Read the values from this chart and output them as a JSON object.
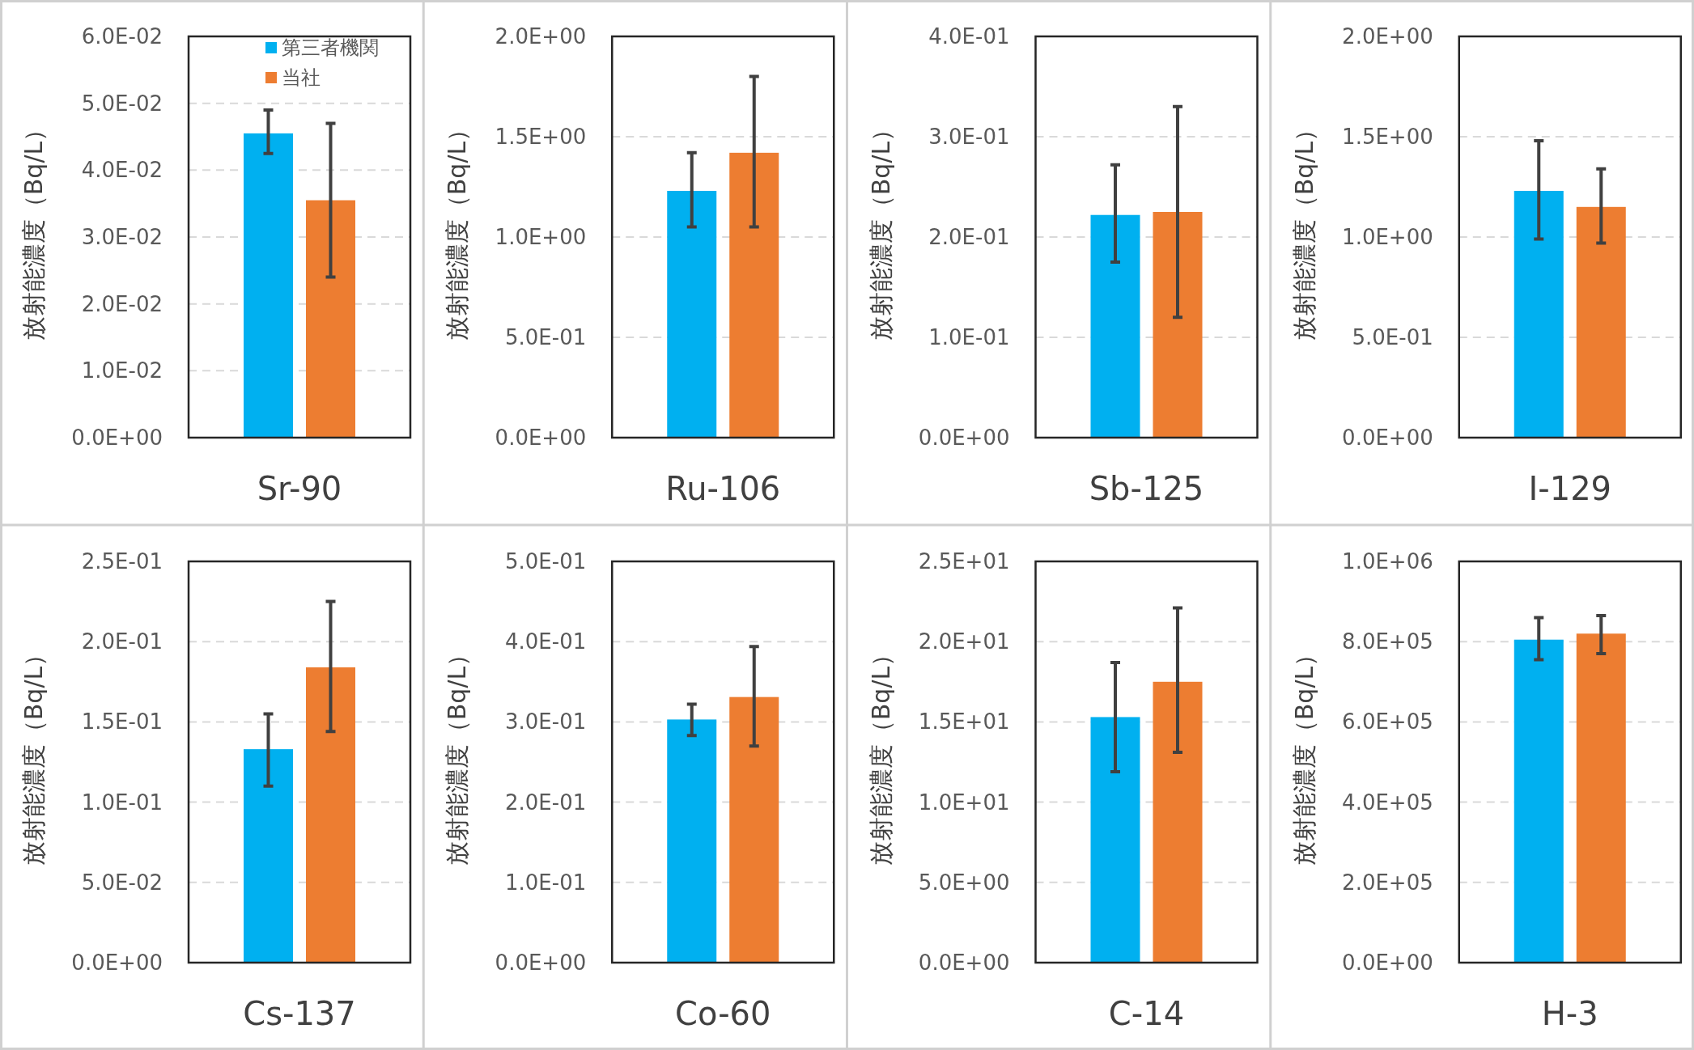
{
  "chart_data": [
    {
      "type": "bar",
      "categories": [
        "Sr-90"
      ],
      "ylabel": "放射能濃度（Bq/L）",
      "legend": "top right",
      "grid": "y",
      "ylim": [
        0,
        0.06
      ],
      "yticks": [
        {
          "value": 0,
          "label": "0.0E+00"
        },
        {
          "value": 0.01,
          "label": "1.0E-02"
        },
        {
          "value": 0.02,
          "label": "2.0E-02"
        },
        {
          "value": 0.03,
          "label": "3.0E-02"
        },
        {
          "value": 0.04,
          "label": "4.0E-02"
        },
        {
          "value": 0.05,
          "label": "5.0E-02"
        },
        {
          "value": 0.06,
          "label": "6.0E-02"
        }
      ],
      "series": [
        {
          "name": "第三者機関",
          "color": "#00b0f0",
          "values": [
            0.0455
          ],
          "errors": [
            [
              0.0425,
              0.049
            ]
          ]
        },
        {
          "name": "当社",
          "color": "#ed7d31",
          "values": [
            0.0355
          ],
          "errors": [
            [
              0.024,
              0.047
            ]
          ]
        }
      ]
    },
    {
      "type": "bar",
      "categories": [
        "Ru-106"
      ],
      "ylabel": "放射能濃度（Bq/L）",
      "grid": "y",
      "ylim": [
        0,
        2.0
      ],
      "yticks": [
        {
          "value": 0,
          "label": "0.0E+00"
        },
        {
          "value": 0.5,
          "label": "5.0E-01"
        },
        {
          "value": 1.0,
          "label": "1.0E+00"
        },
        {
          "value": 1.5,
          "label": "1.5E+00"
        },
        {
          "value": 2.0,
          "label": "2.0E+00"
        }
      ],
      "series": [
        {
          "color": "#00b0f0",
          "values": [
            1.23
          ],
          "errors": [
            [
              1.05,
              1.42
            ]
          ]
        },
        {
          "color": "#ed7d31",
          "values": [
            1.42
          ],
          "errors": [
            [
              1.05,
              1.8
            ]
          ]
        }
      ]
    },
    {
      "type": "bar",
      "categories": [
        "Sb-125"
      ],
      "ylabel": "放射能濃度（Bq/L）",
      "grid": "y",
      "ylim": [
        0,
        0.4
      ],
      "yticks": [
        {
          "value": 0,
          "label": "0.0E+00"
        },
        {
          "value": 0.1,
          "label": "1.0E-01"
        },
        {
          "value": 0.2,
          "label": "2.0E-01"
        },
        {
          "value": 0.3,
          "label": "3.0E-01"
        },
        {
          "value": 0.4,
          "label": "4.0E-01"
        }
      ],
      "series": [
        {
          "color": "#00b0f0",
          "values": [
            0.222
          ],
          "errors": [
            [
              0.175,
              0.272
            ]
          ]
        },
        {
          "color": "#ed7d31",
          "values": [
            0.225
          ],
          "errors": [
            [
              0.12,
              0.33
            ]
          ]
        }
      ]
    },
    {
      "type": "bar",
      "categories": [
        "I-129"
      ],
      "ylabel": "放射能濃度（Bq/L）",
      "grid": "y",
      "ylim": [
        0,
        2.0
      ],
      "yticks": [
        {
          "value": 0,
          "label": "0.0E+00"
        },
        {
          "value": 0.5,
          "label": "5.0E-01"
        },
        {
          "value": 1.0,
          "label": "1.0E+00"
        },
        {
          "value": 1.5,
          "label": "1.5E+00"
        },
        {
          "value": 2.0,
          "label": "2.0E+00"
        }
      ],
      "series": [
        {
          "color": "#00b0f0",
          "values": [
            1.23
          ],
          "errors": [
            [
              0.99,
              1.48
            ]
          ]
        },
        {
          "color": "#ed7d31",
          "values": [
            1.15
          ],
          "errors": [
            [
              0.97,
              1.34
            ]
          ]
        }
      ]
    },
    {
      "type": "bar",
      "categories": [
        "Cs-137"
      ],
      "ylabel": "放射能濃度（Bq/L）",
      "grid": "y",
      "ylim": [
        0,
        0.25
      ],
      "yticks": [
        {
          "value": 0,
          "label": "0.0E+00"
        },
        {
          "value": 0.05,
          "label": "5.0E-02"
        },
        {
          "value": 0.1,
          "label": "1.0E-01"
        },
        {
          "value": 0.15,
          "label": "1.5E-01"
        },
        {
          "value": 0.2,
          "label": "2.0E-01"
        },
        {
          "value": 0.25,
          "label": "2.5E-01"
        }
      ],
      "series": [
        {
          "color": "#00b0f0",
          "values": [
            0.133
          ],
          "errors": [
            [
              0.11,
              0.155
            ]
          ]
        },
        {
          "color": "#ed7d31",
          "values": [
            0.184
          ],
          "errors": [
            [
              0.144,
              0.225
            ]
          ]
        }
      ]
    },
    {
      "type": "bar",
      "categories": [
        "Co-60"
      ],
      "ylabel": "放射能濃度（Bq/L）",
      "grid": "y",
      "ylim": [
        0,
        0.5
      ],
      "yticks": [
        {
          "value": 0,
          "label": "0.0E+00"
        },
        {
          "value": 0.1,
          "label": "1.0E-01"
        },
        {
          "value": 0.2,
          "label": "2.0E-01"
        },
        {
          "value": 0.3,
          "label": "3.0E-01"
        },
        {
          "value": 0.4,
          "label": "4.0E-01"
        },
        {
          "value": 0.5,
          "label": "5.0E-01"
        }
      ],
      "series": [
        {
          "color": "#00b0f0",
          "values": [
            0.303
          ],
          "errors": [
            [
              0.283,
              0.322
            ]
          ]
        },
        {
          "color": "#ed7d31",
          "values": [
            0.331
          ],
          "errors": [
            [
              0.27,
              0.394
            ]
          ]
        }
      ]
    },
    {
      "type": "bar",
      "categories": [
        "C-14"
      ],
      "ylabel": "放射能濃度（Bq/L）",
      "grid": "y",
      "ylim": [
        0,
        25
      ],
      "yticks": [
        {
          "value": 0,
          "label": "0.0E+00"
        },
        {
          "value": 5,
          "label": "5.0E+00"
        },
        {
          "value": 10,
          "label": "1.0E+01"
        },
        {
          "value": 15,
          "label": "1.5E+01"
        },
        {
          "value": 20,
          "label": "2.0E+01"
        },
        {
          "value": 25,
          "label": "2.5E+01"
        }
      ],
      "series": [
        {
          "color": "#00b0f0",
          "values": [
            15.3
          ],
          "errors": [
            [
              11.9,
              18.7
            ]
          ]
        },
        {
          "color": "#ed7d31",
          "values": [
            17.5
          ],
          "errors": [
            [
              13.1,
              22.1
            ]
          ]
        }
      ]
    },
    {
      "type": "bar",
      "categories": [
        "H-3"
      ],
      "ylabel": "放射能濃度（Bq/L）",
      "grid": "y",
      "ylim": [
        0,
        1000000
      ],
      "yticks": [
        {
          "value": 0,
          "label": "0.0E+00"
        },
        {
          "value": 200000,
          "label": "2.0E+05"
        },
        {
          "value": 400000,
          "label": "4.0E+05"
        },
        {
          "value": 600000,
          "label": "6.0E+05"
        },
        {
          "value": 800000,
          "label": "8.0E+05"
        },
        {
          "value": 1000000,
          "label": "1.0E+06"
        }
      ],
      "series": [
        {
          "color": "#00b0f0",
          "values": [
            805000
          ],
          "errors": [
            [
              755000,
              860000
            ]
          ]
        },
        {
          "color": "#ed7d31",
          "values": [
            820000
          ],
          "errors": [
            [
              770000,
              865000
            ]
          ]
        }
      ]
    }
  ]
}
